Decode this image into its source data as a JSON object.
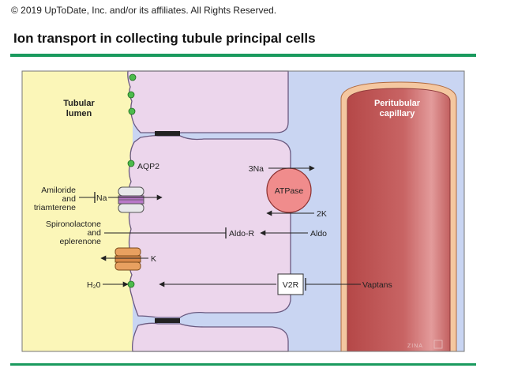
{
  "header": {
    "copyright": "© 2019 UpToDate, Inc. and/or its affiliates. All Rights Reserved.",
    "title": "Ion transport in collecting tubule principal cells"
  },
  "diagram": {
    "lumen_label_1": "Tubular",
    "lumen_label_2": "lumen",
    "capillary_label_1": "Peritubular",
    "capillary_label_2": "capillary",
    "aqp2": "AQP2",
    "na_in": "3Na",
    "atpase": "ATPase",
    "k_out": "2K",
    "amiloride_1": "Amiloride",
    "amiloride_2": "and",
    "amiloride_3": "triamterene",
    "na_channel": "Na",
    "spiro_1": "Spironolactone",
    "spiro_2": "and",
    "spiro_3": "eplerenone",
    "aldo_r": "Aldo-R",
    "aldo": "Aldo",
    "k_channel": "K",
    "water": "H₂0",
    "v2r": "V2R",
    "vaptans": "Vaptans",
    "signature": "ZINA"
  },
  "colors": {
    "lumen": "#fbf6b8",
    "cell": "#ecd6ec",
    "interstitium": "#c9d5f2",
    "capillary": "#c65c5c",
    "atpase": "#f08c8c",
    "aqp": "#4cbb4c",
    "rule": "#1a9a5e"
  }
}
